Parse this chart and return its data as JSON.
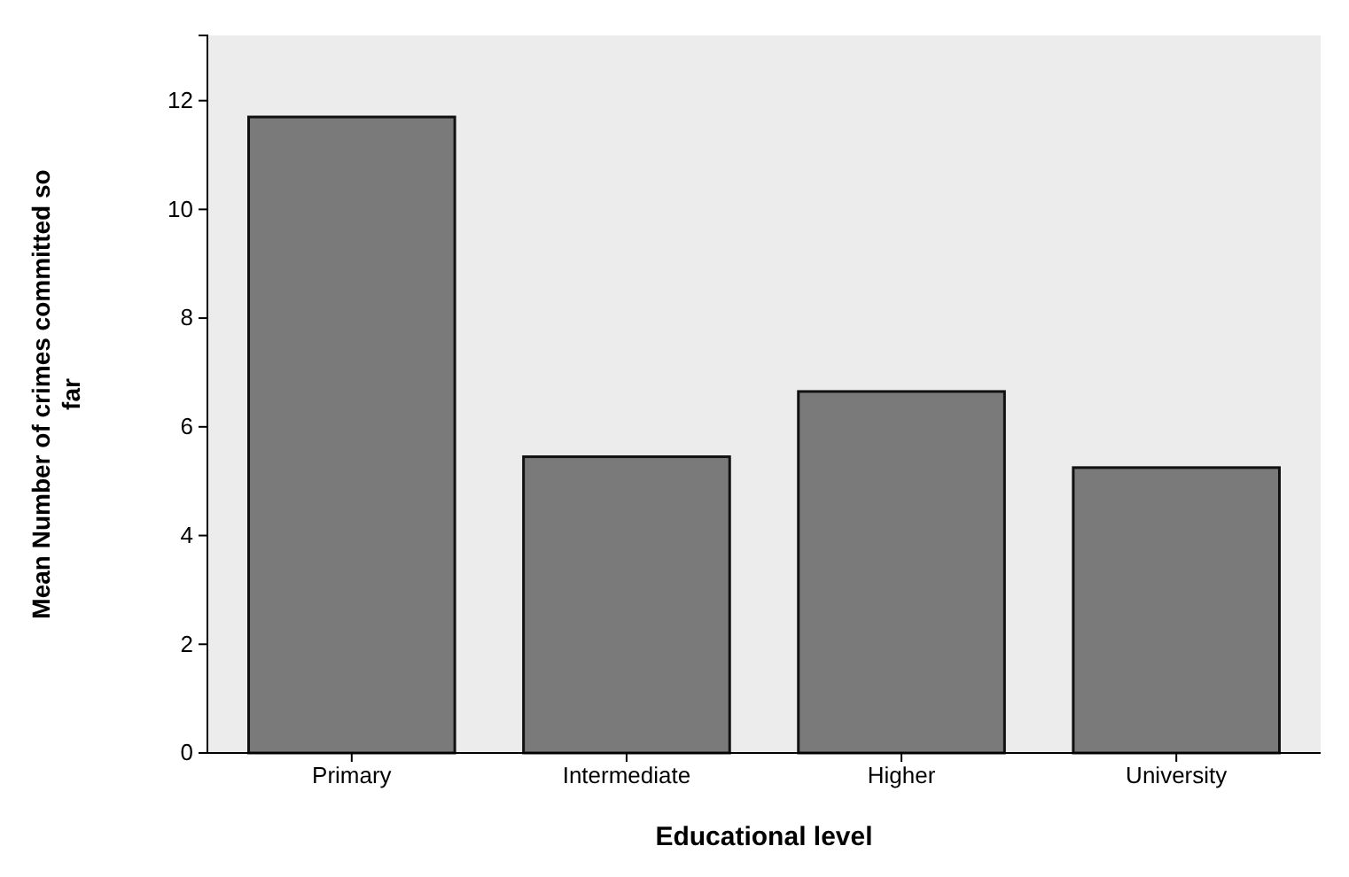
{
  "chart_data": {
    "type": "bar",
    "xlabel": "Educational level",
    "ylabel": "Mean Number of crimes committed so far",
    "categories": [
      "Primary",
      "Intermediate",
      "Higher",
      "University"
    ],
    "values": [
      11.7,
      5.45,
      6.65,
      5.25
    ],
    "color": "#7a7a7a",
    "ylim": [
      0,
      13.2
    ],
    "yticks": [
      0,
      2,
      4,
      6,
      8,
      10,
      12
    ],
    "grid": false
  }
}
